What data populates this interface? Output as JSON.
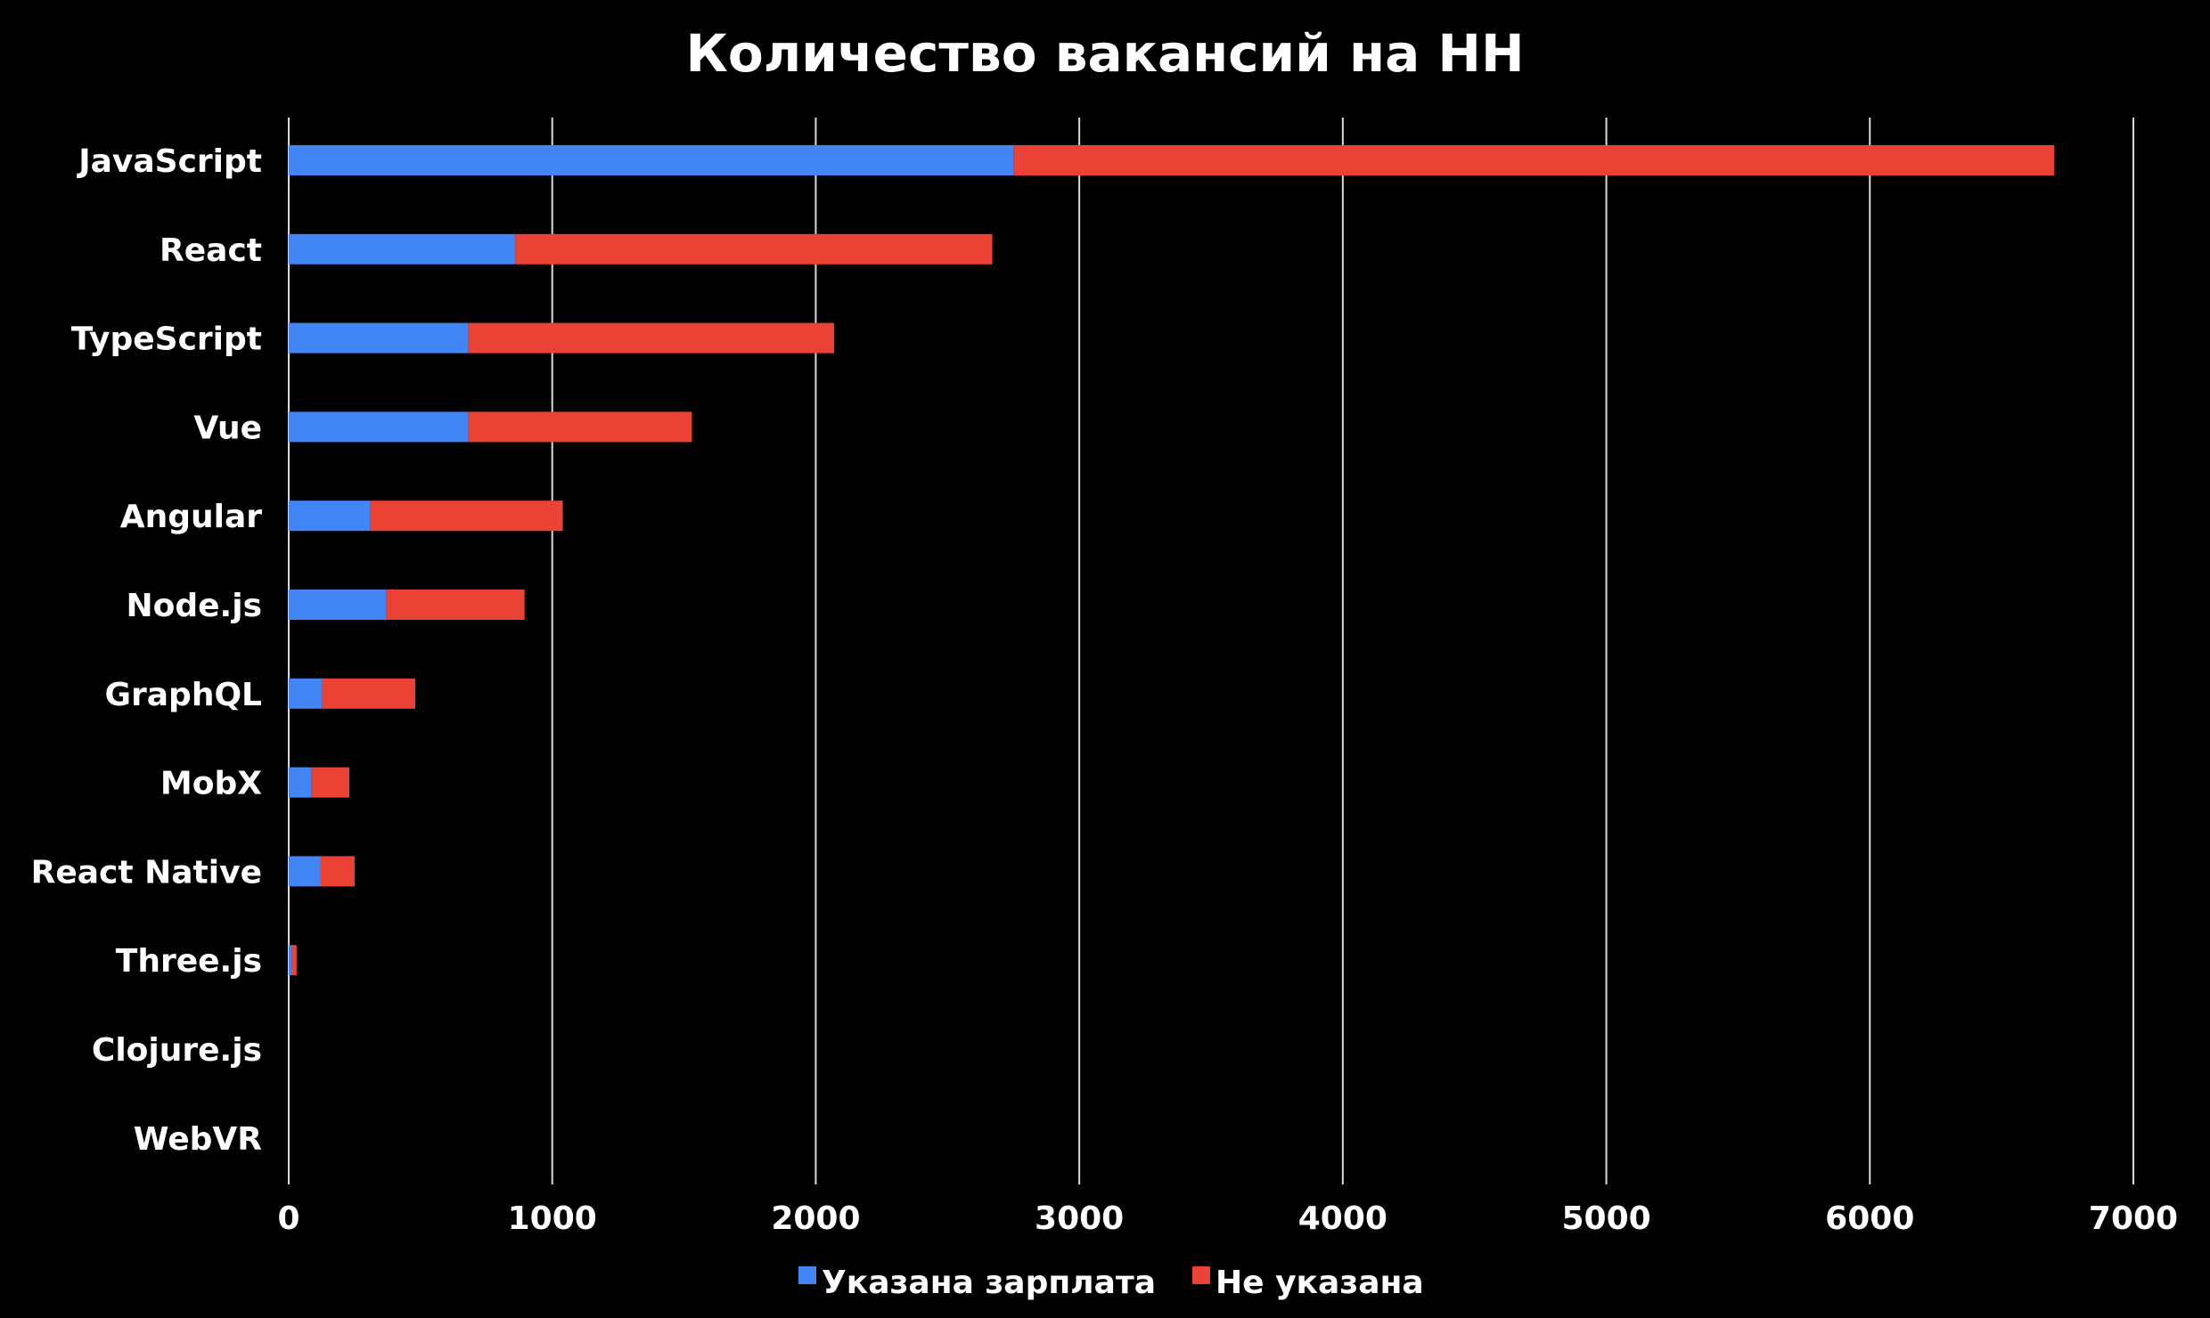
{
  "chart_data": {
    "type": "bar",
    "orientation": "horizontal",
    "stacked": true,
    "title": "Количество вакансий на HH",
    "xlabel": "",
    "ylabel": "",
    "xlim": [
      0,
      7000
    ],
    "x_ticks": [
      0,
      1000,
      2000,
      3000,
      4000,
      5000,
      6000,
      7000
    ],
    "grid": true,
    "legend_position": "bottom",
    "categories": [
      "JavaScript",
      "React",
      "TypeScript",
      "Vue",
      "Angular",
      "Node.js",
      "GraphQL",
      "MobX",
      "React Native",
      "Three.js",
      "Clojure.js",
      "WebVR"
    ],
    "series": [
      {
        "name": "Указана зарплата",
        "color": "#4285f4",
        "values": [
          2750,
          860,
          680,
          680,
          310,
          370,
          125,
          85,
          120,
          10,
          0,
          0
        ]
      },
      {
        "name": "Не указана",
        "color": "#ea4335",
        "values": [
          3950,
          1810,
          1390,
          850,
          730,
          525,
          355,
          145,
          130,
          20,
          0,
          0
        ]
      }
    ]
  }
}
